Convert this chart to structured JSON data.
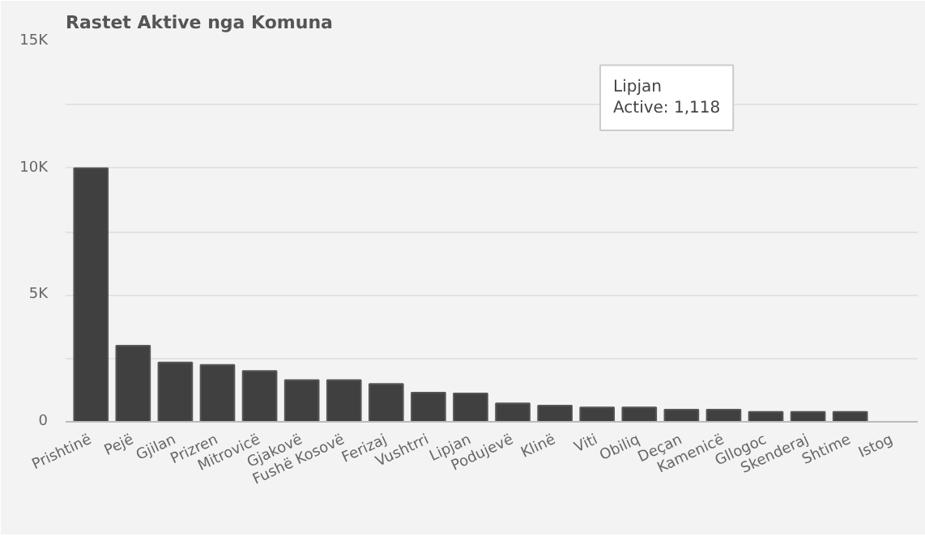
{
  "chart_data": {
    "type": "bar",
    "title": "Rastet Aktive nga Komuna",
    "categories": [
      "Prishtinë",
      "Pejë",
      "Gjilan",
      "Prizren",
      "Mitrovicë",
      "Gjakovë",
      "Fushë Kosovë",
      "Ferizaj",
      "Vushtrri",
      "Lipjan",
      "Podujevë",
      "Klinë",
      "Viti",
      "Obiliq",
      "Deçan",
      "Kamenicë",
      "Gllogoc",
      "Skenderaj",
      "Shtime",
      "Istog"
    ],
    "series": [
      {
        "color": "#404040",
        "values": [
          10000,
          3000,
          2340,
          2240,
          2000,
          1640,
          1640,
          1490,
          1150,
          1118,
          730,
          640,
          570,
          570,
          480,
          480,
          390,
          390,
          390,
          null
        ]
      }
    ],
    "ylim": [
      0,
      15000
    ],
    "yticks": [
      0,
      {
        "value": 2500,
        "label": null
      },
      {
        "value": 5000,
        "label": "5K"
      },
      {
        "value": 7500,
        "label": null
      },
      {
        "value": 10000,
        "label": "10K"
      },
      {
        "value": 12500,
        "label": null
      },
      {
        "value": 15000,
        "label": "15K"
      }
    ],
    "grid": "y",
    "annotations": [
      "Lipjan",
      "Active: 1,118"
    ]
  }
}
